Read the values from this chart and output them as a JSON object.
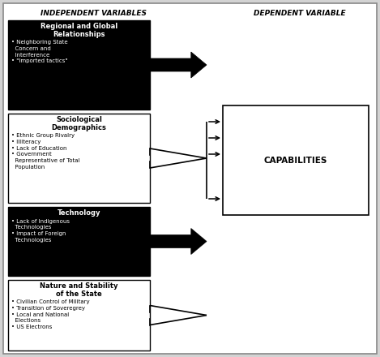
{
  "header_left": "INDEPENDENT VARIABLES",
  "header_right": "DEPENDENT VARIABLE",
  "background_color": "#d3d3d3",
  "boxes": [
    {
      "label": "Regional and Global\nRelationships",
      "bullets": [
        "• Neighboring State\n  Concern and\n  Interference",
        "• \"Imported tactics\""
      ],
      "bg": "#000000",
      "text_color": "#ffffff",
      "arrow_style": "filled_black"
    },
    {
      "label": "Sociological\nDemographics",
      "bullets": [
        "• Ethnic Group Rivalry",
        "• Illiteracy",
        "• Lack of Education",
        "• Government\n  Representative of Total\n  Population"
      ],
      "bg": "#ffffff",
      "text_color": "#000000",
      "arrow_style": "outline"
    },
    {
      "label": "Technology",
      "bullets": [
        "• Lack of Indigenous\n  Technologies",
        "• Impact of Foreign\n  Technologies"
      ],
      "bg": "#000000",
      "text_color": "#ffffff",
      "arrow_style": "filled_black"
    },
    {
      "label": "Nature and Stability\nof the State",
      "bullets": [
        "• Civilian Control of Military",
        "• Transition of Soveregrey",
        "• Local and National\n  Elections",
        "• US Electrons"
      ],
      "bg": "#ffffff",
      "text_color": "#000000",
      "arrow_style": "outline"
    }
  ],
  "dep_label": "CAPABILITIES"
}
